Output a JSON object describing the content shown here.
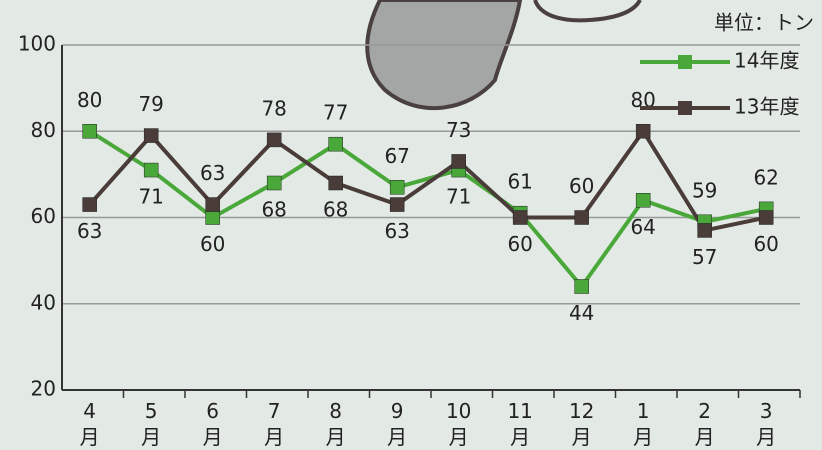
{
  "chart_data": {
    "type": "line",
    "unit_label": "単位：トン",
    "categories": [
      "4月",
      "5月",
      "6月",
      "7月",
      "8月",
      "9月",
      "10月",
      "11月",
      "12月",
      "1月",
      "2月",
      "3月"
    ],
    "series": [
      {
        "name": "14年度",
        "color": "#4aa83a",
        "values": [
          80,
          71,
          60,
          68,
          77,
          67,
          71,
          61,
          44,
          64,
          59,
          62
        ]
      },
      {
        "name": "13年度",
        "color": "#4a3c38",
        "values": [
          63,
          79,
          63,
          78,
          68,
          63,
          73,
          60,
          60,
          80,
          57,
          60
        ]
      }
    ],
    "ylim": [
      20,
      100
    ],
    "yticks": [
      20,
      40,
      60,
      80,
      100
    ],
    "grid": true
  }
}
